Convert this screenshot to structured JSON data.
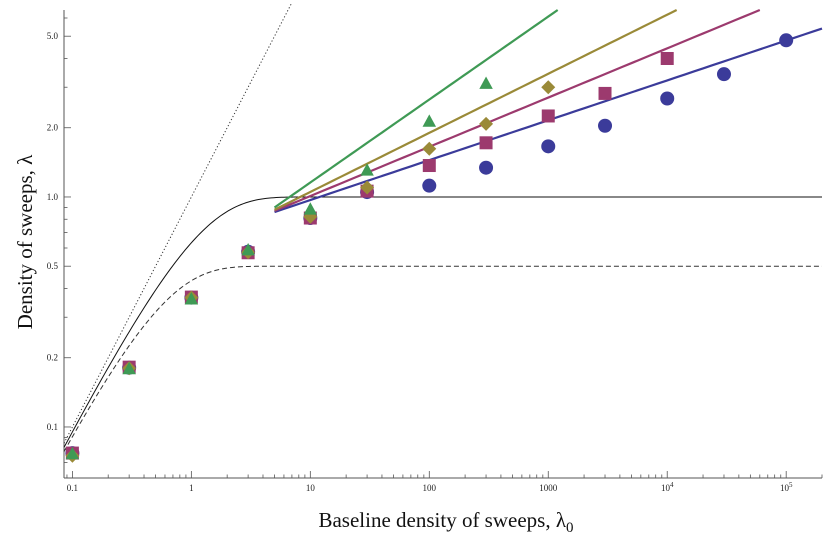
{
  "chart_data": {
    "type": "scatter",
    "title": "",
    "xlabel": "Baseline density of sweeps, λ",
    "xlabel_sub": "0",
    "ylabel": "Density of sweeps, λ",
    "xscale": "log",
    "yscale": "log",
    "xlim": [
      0.085,
      200000
    ],
    "ylim": [
      0.06,
      6.5
    ],
    "grid": false,
    "legend": "none",
    "x_ticks": [
      {
        "value": 0.1,
        "label": "0.1",
        "exp": ""
      },
      {
        "value": 1,
        "label": "1",
        "exp": ""
      },
      {
        "value": 10,
        "label": "10",
        "exp": ""
      },
      {
        "value": 100,
        "label": "100",
        "exp": ""
      },
      {
        "value": 1000,
        "label": "1000",
        "exp": ""
      },
      {
        "value": 10000,
        "label": "10",
        "exp": "4"
      },
      {
        "value": 100000,
        "label": "10",
        "exp": "5"
      }
    ],
    "y_ticks": [
      {
        "value": 0.1,
        "label": "0.1"
      },
      {
        "value": 0.2,
        "label": "0.2"
      },
      {
        "value": 0.5,
        "label": "0.5"
      },
      {
        "value": 1.0,
        "label": "1.0"
      },
      {
        "value": 2.0,
        "label": "2.0"
      },
      {
        "value": 5.0,
        "label": "5.0"
      }
    ],
    "reference_curves": [
      {
        "id": "identity",
        "style": "dotted",
        "color": "#333333",
        "x": [
          0.085,
          7
        ],
        "y": [
          0.085,
          7
        ]
      },
      {
        "id": "saturation-1",
        "style": "solid",
        "color": "#111111",
        "saturation": 1.0
      },
      {
        "id": "saturation-0.5",
        "style": "dashed",
        "color": "#333333",
        "saturation": 0.5
      }
    ],
    "series": [
      {
        "marker": "circle",
        "color": "#3b3b9a",
        "points": [
          {
            "x": 0.1,
            "y": 0.077
          },
          {
            "x": 0.3,
            "y": 0.181
          },
          {
            "x": 1,
            "y": 0.365
          },
          {
            "x": 3,
            "y": 0.578
          },
          {
            "x": 10,
            "y": 0.81
          },
          {
            "x": 30,
            "y": 1.05
          },
          {
            "x": 100,
            "y": 1.12
          },
          {
            "x": 300,
            "y": 1.34
          },
          {
            "x": 1000,
            "y": 1.66
          },
          {
            "x": 3000,
            "y": 2.04
          },
          {
            "x": 10000,
            "y": 2.68
          },
          {
            "x": 30000,
            "y": 3.42
          },
          {
            "x": 100000,
            "y": 4.8
          }
        ],
        "fit": {
          "x": [
            5,
            200000
          ],
          "y": [
            0.86,
            5.4
          ]
        }
      },
      {
        "marker": "square",
        "color": "#9c3a6e",
        "points": [
          {
            "x": 0.1,
            "y": 0.077
          },
          {
            "x": 0.3,
            "y": 0.182
          },
          {
            "x": 1,
            "y": 0.367
          },
          {
            "x": 3,
            "y": 0.572
          },
          {
            "x": 10,
            "y": 0.81
          },
          {
            "x": 30,
            "y": 1.06
          },
          {
            "x": 100,
            "y": 1.37
          },
          {
            "x": 300,
            "y": 1.72
          },
          {
            "x": 1000,
            "y": 2.25
          },
          {
            "x": 3000,
            "y": 2.82
          },
          {
            "x": 10000,
            "y": 4.0
          }
        ],
        "fit": {
          "x": [
            5,
            60000
          ],
          "y": [
            0.87,
            6.5
          ]
        }
      },
      {
        "marker": "diamond",
        "color": "#9a8a38",
        "points": [
          {
            "x": 0.1,
            "y": 0.075
          },
          {
            "x": 0.3,
            "y": 0.18
          },
          {
            "x": 1,
            "y": 0.365
          },
          {
            "x": 3,
            "y": 0.575
          },
          {
            "x": 10,
            "y": 0.82
          },
          {
            "x": 30,
            "y": 1.1
          },
          {
            "x": 100,
            "y": 1.62
          },
          {
            "x": 300,
            "y": 2.08
          },
          {
            "x": 1000,
            "y": 3.0
          }
        ],
        "fit": {
          "x": [
            5,
            12000
          ],
          "y": [
            0.88,
            6.5
          ]
        }
      },
      {
        "marker": "triangle",
        "color": "#3f9a55",
        "points": [
          {
            "x": 0.1,
            "y": 0.076
          },
          {
            "x": 0.3,
            "y": 0.178
          },
          {
            "x": 1,
            "y": 0.358
          },
          {
            "x": 3,
            "y": 0.585
          },
          {
            "x": 10,
            "y": 0.88
          },
          {
            "x": 30,
            "y": 1.3
          },
          {
            "x": 100,
            "y": 2.12
          },
          {
            "x": 300,
            "y": 3.1
          }
        ],
        "fit": {
          "x": [
            5,
            1200
          ],
          "y": [
            0.9,
            6.5
          ]
        }
      }
    ]
  }
}
